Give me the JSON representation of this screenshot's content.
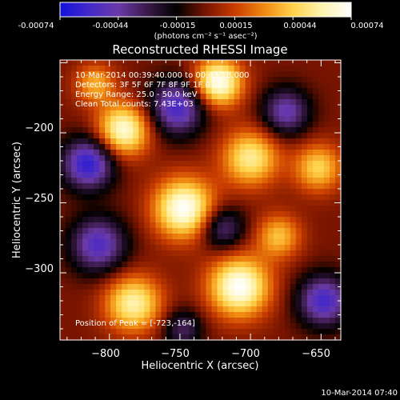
{
  "colorbar": {
    "ticks": [
      "-0.00074",
      "-0.00044",
      "-0.00015",
      "0.00015",
      "0.00044",
      "0.00074"
    ],
    "label": "(photons cm⁻² s⁻¹ asec⁻²)",
    "colors": [
      "#1212d8",
      "#4428c8",
      "#6a3aa8",
      "#3a1a48",
      "#000000",
      "#781400",
      "#c83c00",
      "#f08810",
      "#ffd24a",
      "#fff4b0",
      "#ffffff"
    ]
  },
  "chart_data": {
    "type": "heatmap",
    "title": "Reconstructed RHESSI Image",
    "xlabel": "Heliocentric X (arcsec)",
    "ylabel": "Heliocentric Y (arcsec)",
    "xlim": [
      -835,
      -636
    ],
    "ylim": [
      -348,
      -148
    ],
    "x_ticks": [
      -800,
      -750,
      -700,
      -650
    ],
    "y_ticks": [
      -200,
      -250,
      -300
    ],
    "x_tick_labels": [
      "−800",
      "−750",
      "−700",
      "−650"
    ],
    "y_tick_labels": [
      "−200",
      "−250",
      "−300"
    ],
    "info_lines": [
      "10-Mar-2014 00:39:40.000 to 00:43:18.000",
      "Detectors: 3F 5F 6F 7F 8F 9F 1F 0",
      "Energy Range: 25.0 - 50.0 keV",
      "Clean    Total counts: 7.43E+03"
    ],
    "peak_label": "Position of Peak = [-723,-164]",
    "peak": [
      -723,
      -164
    ],
    "sources": [
      {
        "x": -723,
        "y": -164,
        "amp": 1.0,
        "sigma": 12
      },
      {
        "x": -790,
        "y": -198,
        "amp": 0.92,
        "sigma": 13
      },
      {
        "x": -747,
        "y": -254,
        "amp": 1.0,
        "sigma": 15
      },
      {
        "x": -700,
        "y": -218,
        "amp": 0.75,
        "sigma": 14
      },
      {
        "x": -652,
        "y": -225,
        "amp": 0.62,
        "sigma": 12
      },
      {
        "x": -708,
        "y": -310,
        "amp": 1.0,
        "sigma": 15
      },
      {
        "x": -783,
        "y": -322,
        "amp": 0.8,
        "sigma": 14
      },
      {
        "x": -680,
        "y": -274,
        "amp": 0.55,
        "sigma": 11
      },
      {
        "x": -810,
        "y": -165,
        "amp": 0.5,
        "sigma": 10
      },
      {
        "x": -815,
        "y": -222,
        "amp": -0.9,
        "sigma": 13
      },
      {
        "x": -752,
        "y": -182,
        "amp": -0.8,
        "sigma": 14
      },
      {
        "x": -675,
        "y": -185,
        "amp": -0.65,
        "sigma": 12
      },
      {
        "x": -808,
        "y": -280,
        "amp": -0.75,
        "sigma": 14
      },
      {
        "x": -720,
        "y": -268,
        "amp": -0.55,
        "sigma": 11
      },
      {
        "x": -648,
        "y": -320,
        "amp": -0.8,
        "sigma": 13
      },
      {
        "x": -748,
        "y": -340,
        "amp": -0.45,
        "sigma": 10
      }
    ]
  },
  "timestamp": "10-Mar-2014 07:40"
}
